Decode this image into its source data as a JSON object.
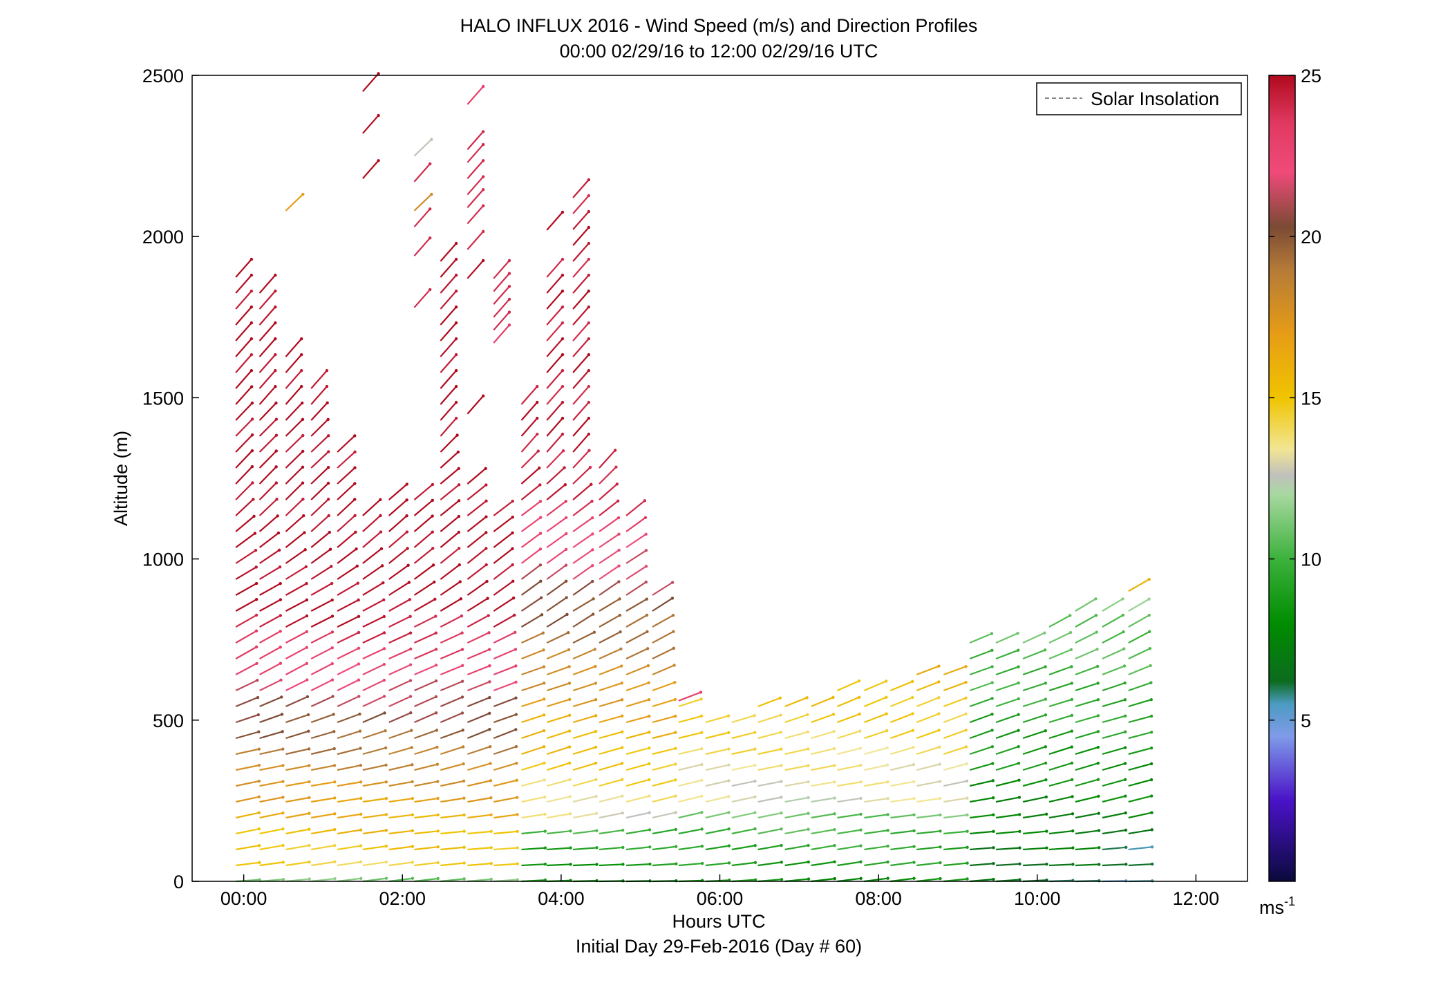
{
  "chart_data": {
    "type": "wind-barb-profile",
    "title": "HALO INFLUX 2016 - Wind Speed (m/s) and Direction Profiles",
    "subtitle": "00:00 02/29/16 to 12:00 02/29/16  UTC",
    "xlabel": "Hours UTC",
    "footer": "Initial Day 29-Feb-2016 (Day # 60)",
    "ylabel": "Altitude (m)",
    "xlim": [
      -0.65,
      12.65
    ],
    "ylim": [
      0,
      2500
    ],
    "xticks": [
      {
        "v": 0,
        "label": "00:00"
      },
      {
        "v": 2,
        "label": "02:00"
      },
      {
        "v": 4,
        "label": "04:00"
      },
      {
        "v": 6,
        "label": "06:00"
      },
      {
        "v": 8,
        "label": "08:00"
      },
      {
        "v": 10,
        "label": "10:00"
      },
      {
        "v": 12,
        "label": "12:00"
      }
    ],
    "yticks": [
      {
        "v": 0,
        "label": "0"
      },
      {
        "v": 500,
        "label": "500"
      },
      {
        "v": 1000,
        "label": "1000"
      },
      {
        "v": 1500,
        "label": "1500"
      },
      {
        "v": 2000,
        "label": "2000"
      },
      {
        "v": 2500,
        "label": "2500"
      }
    ],
    "legend": {
      "label": "Solar Insolation",
      "placement": "top-right",
      "style": "dashed",
      "color": "#888888"
    },
    "colorbar": {
      "range": [
        0,
        25
      ],
      "unit_label": "ms",
      "unit_exp": "-1",
      "ticks": [
        {
          "v": 5,
          "label": "5"
        },
        {
          "v": 10,
          "label": "10"
        },
        {
          "v": 15,
          "label": "15"
        },
        {
          "v": 20,
          "label": "20"
        },
        {
          "v": 25,
          "label": "25"
        }
      ],
      "color_stops": [
        {
          "v": 0,
          "c": "#0a0a3c"
        },
        {
          "v": 2.5,
          "c": "#4a12c8"
        },
        {
          "v": 4.5,
          "c": "#7f9be8"
        },
        {
          "v": 5.5,
          "c": "#4c9bc2"
        },
        {
          "v": 6.2,
          "c": "#0c6b1e"
        },
        {
          "v": 8,
          "c": "#008c00"
        },
        {
          "v": 10,
          "c": "#3cb23c"
        },
        {
          "v": 12,
          "c": "#a8d8a0"
        },
        {
          "v": 12.6,
          "c": "#c0c0bc"
        },
        {
          "v": 13.4,
          "c": "#f2e694"
        },
        {
          "v": 15,
          "c": "#f0c400"
        },
        {
          "v": 17,
          "c": "#e69c16"
        },
        {
          "v": 19,
          "c": "#b47a38"
        },
        {
          "v": 20.3,
          "c": "#7a4a34"
        },
        {
          "v": 22,
          "c": "#f04a7a"
        },
        {
          "v": 23.5,
          "c": "#e03a62"
        },
        {
          "v": 25,
          "c": "#b00a1e"
        }
      ]
    },
    "barb_length_hours": 0.3,
    "profiles": [
      {
        "t": -0.1,
        "top": 1900,
        "extra": []
      },
      {
        "t": 0.2,
        "top": 1830,
        "extra": []
      },
      {
        "t": 0.53,
        "top": 1660,
        "extra": [
          {
            "alt": 2080,
            "spd": 17
          }
        ]
      },
      {
        "t": 0.85,
        "top": 1530,
        "extra": []
      },
      {
        "t": 1.18,
        "top": 1370,
        "extra": []
      },
      {
        "t": 1.5,
        "top": 1160,
        "extra": [
          {
            "alt": 2180,
            "spd": 25
          },
          {
            "alt": 2320,
            "spd": 25
          },
          {
            "alt": 2450,
            "spd": 25
          }
        ]
      },
      {
        "t": 1.83,
        "top": 1190,
        "extra": []
      },
      {
        "t": 2.15,
        "top": 1230,
        "extra": [
          {
            "alt": 1780,
            "spd": 24
          },
          {
            "alt": 1940,
            "spd": 24
          },
          {
            "alt": 2030,
            "spd": 24
          },
          {
            "alt": 2080,
            "spd": 18
          },
          {
            "alt": 2170,
            "spd": 24
          },
          {
            "alt": 2250,
            "spd": 12.5
          }
        ]
      },
      {
        "t": 2.48,
        "top": 1950,
        "extra": []
      },
      {
        "t": 2.82,
        "top": 1250,
        "extra": [
          {
            "alt": 1450,
            "spd": 25
          },
          {
            "alt": 1870,
            "spd": 25
          },
          {
            "alt": 1960,
            "spd": 24
          },
          {
            "alt": 2040,
            "spd": 24
          },
          {
            "alt": 2090,
            "spd": 24
          },
          {
            "alt": 2130,
            "spd": 24
          },
          {
            "alt": 2180,
            "spd": 24
          },
          {
            "alt": 2230,
            "spd": 24
          },
          {
            "alt": 2270,
            "spd": 24
          },
          {
            "alt": 2410,
            "spd": 23
          }
        ]
      },
      {
        "t": 3.15,
        "top": 1160,
        "extra": [
          {
            "alt": 1670,
            "spd": 23
          },
          {
            "alt": 1710,
            "spd": 24
          },
          {
            "alt": 1750,
            "spd": 24
          },
          {
            "alt": 1790,
            "spd": 24
          },
          {
            "alt": 1830,
            "spd": 24
          },
          {
            "alt": 1870,
            "spd": 24
          }
        ]
      },
      {
        "t": 3.5,
        "top": 1500,
        "extra": []
      },
      {
        "t": 3.82,
        "top": 1910,
        "extra": [
          {
            "alt": 2020,
            "spd": 25
          }
        ]
      },
      {
        "t": 4.15,
        "top": 2150,
        "extra": []
      },
      {
        "t": 4.48,
        "top": 1330,
        "extra": []
      },
      {
        "t": 4.82,
        "top": 1140,
        "extra": []
      },
      {
        "t": 5.15,
        "top": 920,
        "extra": []
      },
      {
        "t": 5.48,
        "top": 580,
        "extra": [
          {
            "alt": 560,
            "spd": 23
          }
        ]
      },
      {
        "t": 5.82,
        "top": 500,
        "extra": []
      },
      {
        "t": 6.15,
        "top": 520,
        "extra": []
      },
      {
        "t": 6.48,
        "top": 560,
        "extra": []
      },
      {
        "t": 6.82,
        "top": 580,
        "extra": []
      },
      {
        "t": 7.15,
        "top": 580,
        "extra": []
      },
      {
        "t": 7.48,
        "top": 610,
        "extra": []
      },
      {
        "t": 7.82,
        "top": 610,
        "extra": []
      },
      {
        "t": 8.15,
        "top": 620,
        "extra": []
      },
      {
        "t": 8.48,
        "top": 680,
        "extra": []
      },
      {
        "t": 8.82,
        "top": 680,
        "extra": []
      },
      {
        "t": 9.15,
        "top": 770,
        "extra": []
      },
      {
        "t": 9.48,
        "top": 740,
        "extra": []
      },
      {
        "t": 9.82,
        "top": 740,
        "extra": []
      },
      {
        "t": 10.15,
        "top": 810,
        "extra": []
      },
      {
        "t": 10.48,
        "top": 850,
        "extra": []
      },
      {
        "t": 10.82,
        "top": 850,
        "extra": []
      },
      {
        "t": 11.15,
        "top": 860,
        "extra": [
          {
            "alt": 900,
            "spd": 16
          }
        ]
      }
    ]
  }
}
